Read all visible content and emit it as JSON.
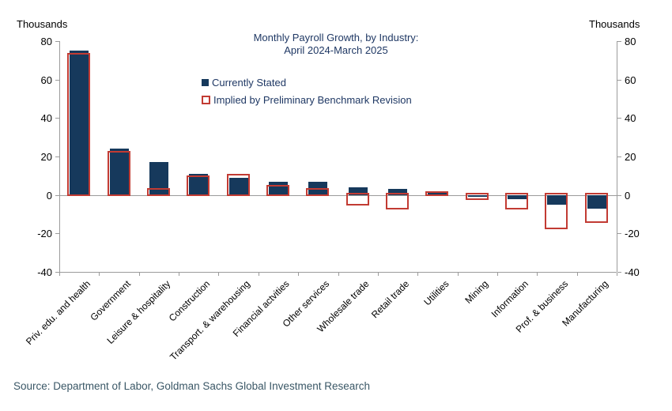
{
  "header": {
    "left_units": "Thousands",
    "right_units": "Thousands"
  },
  "chart_data": {
    "type": "bar",
    "title_line1": "Monthly Payroll Growth, by Industry:",
    "title_line2": "April 2024-March  2025",
    "ylabel": "Thousands",
    "ylim": [
      -40,
      80
    ],
    "yticks": [
      80,
      60,
      40,
      20,
      0,
      -20,
      -40
    ],
    "grid": "zero-line-only",
    "legend_position": "upper-center",
    "categories": [
      "Priv. edu. and health",
      "Government",
      "Leisure & hospitality",
      "Construction",
      "Transport. & warehousing",
      "Financial actvities",
      "Other services",
      "Wholesale trade",
      "Retail trade",
      "Utilities",
      "Mining",
      "Information",
      "Prof. & business",
      "Manufacturing"
    ],
    "series": [
      {
        "name": "Currently Stated",
        "style": "filled",
        "color": "#16395C",
        "values": [
          75,
          24,
          17,
          11,
          9,
          7,
          7,
          4,
          3,
          1,
          -1,
          -2,
          -5,
          -7
        ]
      },
      {
        "name": "Implied by Preliminary Benchmark Revision",
        "style": "outlined",
        "color": "#C23B33",
        "values": [
          73,
          22,
          2.5,
          9,
          10,
          4,
          2.5,
          -5,
          -7,
          1,
          -2,
          -7,
          -17,
          -14
        ]
      }
    ],
    "legend": [
      {
        "name": "Currently Stated"
      },
      {
        "name": "Implied by Preliminary Benchmark Revision"
      }
    ],
    "colors": {
      "bar_fill": "#16395C",
      "bar_outline": "#C23B33",
      "axis": "#9B9B9B",
      "title_text": "#1F3864",
      "tick_text": "#000000",
      "source_text": "#3A5766"
    }
  },
  "footer": {
    "source": "Source: Department of Labor, Goldman Sachs Global Investment Research"
  }
}
